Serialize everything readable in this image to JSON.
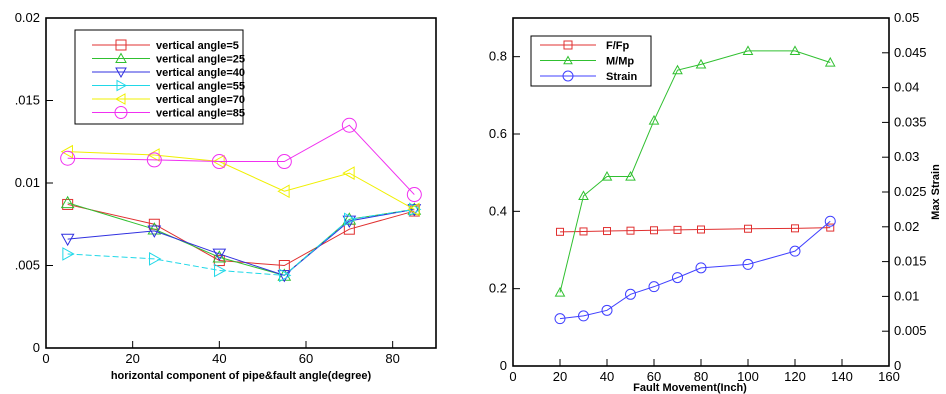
{
  "chart_data": [
    {
      "type": "line",
      "title": "",
      "xlabel": "horizontal component of pipe&fault angle(degree)",
      "ylabel": "",
      "xlim": [
        0,
        90
      ],
      "ylim": [
        0,
        0.02
      ],
      "x_ticks": [
        0,
        20,
        40,
        60,
        80
      ],
      "x_tick_labels": [
        "0",
        "20",
        "40",
        "60",
        "80"
      ],
      "y_ticks": [
        0,
        0.005,
        0.01,
        0.015,
        0.02
      ],
      "y_tick_labels": [
        "0",
        ".005",
        "0.01",
        ".015",
        "0.02"
      ],
      "grid": false,
      "legend_position": "top-left",
      "x": [
        5,
        25,
        40,
        55,
        70,
        85
      ],
      "series": [
        {
          "name": "vertical angle=5",
          "color": "#e03030",
          "marker": "square",
          "values": [
            0.0087,
            0.0075,
            0.0053,
            0.005,
            0.0072,
            0.0083
          ]
        },
        {
          "name": "vertical angle=25",
          "color": "#30c030",
          "marker": "triangle-up",
          "values": [
            0.0088,
            0.0072,
            0.0055,
            0.0044,
            0.0078,
            0.0084
          ]
        },
        {
          "name": "vertical angle=40",
          "color": "#3030e0",
          "marker": "triangle-down",
          "values": [
            0.0066,
            0.0071,
            0.0057,
            0.0044,
            0.0077,
            0.0084
          ]
        },
        {
          "name": "vertical angle=55",
          "color": "#20d8e8",
          "marker": "triangle-right",
          "values": [
            0.0057,
            0.0054,
            0.0047,
            0.0044,
            0.0078,
            0.0084
          ]
        },
        {
          "name": "vertical angle=70",
          "color": "#f0f000",
          "marker": "triangle-left",
          "values": [
            0.0119,
            0.0117,
            0.0113,
            0.0095,
            0.0106,
            0.0084
          ]
        },
        {
          "name": "vertical angle=85",
          "color": "#f030f0",
          "marker": "circle",
          "values": [
            0.0115,
            0.0114,
            0.0113,
            0.0113,
            0.0135,
            0.0093
          ]
        }
      ]
    },
    {
      "type": "line",
      "title": "",
      "xlabel": "Fault Movement(Inch)",
      "ylabel": "",
      "y2label": "Max Strain",
      "xlim": [
        0,
        160
      ],
      "ylim": [
        0,
        0.9
      ],
      "y2lim": [
        0,
        0.05
      ],
      "x_ticks": [
        0,
        20,
        40,
        60,
        80,
        100,
        120,
        140,
        160
      ],
      "x_tick_labels": [
        "0",
        "20",
        "40",
        "60",
        "80",
        "100",
        "120",
        "140",
        "160"
      ],
      "y_ticks": [
        0,
        0.2,
        0.4,
        0.6,
        0.8
      ],
      "y_tick_labels": [
        "0",
        "0.2",
        "0.4",
        "0.6",
        "0.8"
      ],
      "y2_ticks": [
        0,
        0.005,
        0.01,
        0.015,
        0.02,
        0.025,
        0.03,
        0.035,
        0.04,
        0.045,
        0.05
      ],
      "y2_tick_labels": [
        "0",
        "0.005",
        "0.01",
        "0.015",
        "0.02",
        "0.025",
        "0.03",
        "0.035",
        "0.04",
        "0.045",
        "0.05"
      ],
      "grid": false,
      "legend_position": "top-left",
      "series": [
        {
          "name": "F/Fp",
          "color": "#e03030",
          "marker": "square",
          "axis": "left",
          "x": [
            20,
            30,
            40,
            50,
            60,
            70,
            80,
            100,
            120,
            135
          ],
          "values": [
            0.347,
            0.348,
            0.349,
            0.35,
            0.351,
            0.352,
            0.353,
            0.355,
            0.356,
            0.358
          ]
        },
        {
          "name": "M/Mp",
          "color": "#30c030",
          "marker": "triangle-up",
          "axis": "left",
          "x": [
            20,
            30,
            40,
            50,
            60,
            70,
            80,
            100,
            120,
            135
          ],
          "values": [
            0.19,
            0.44,
            0.49,
            0.49,
            0.635,
            0.765,
            0.78,
            0.815,
            0.815,
            0.785
          ]
        },
        {
          "name": "Strain",
          "color": "#4040ff",
          "marker": "circle",
          "axis": "right",
          "x": [
            20,
            30,
            40,
            50,
            60,
            70,
            80,
            100,
            120,
            135
          ],
          "values": [
            0.0068,
            0.0072,
            0.008,
            0.0103,
            0.0114,
            0.0127,
            0.0141,
            0.0146,
            0.0165,
            0.0208
          ]
        }
      ]
    }
  ]
}
